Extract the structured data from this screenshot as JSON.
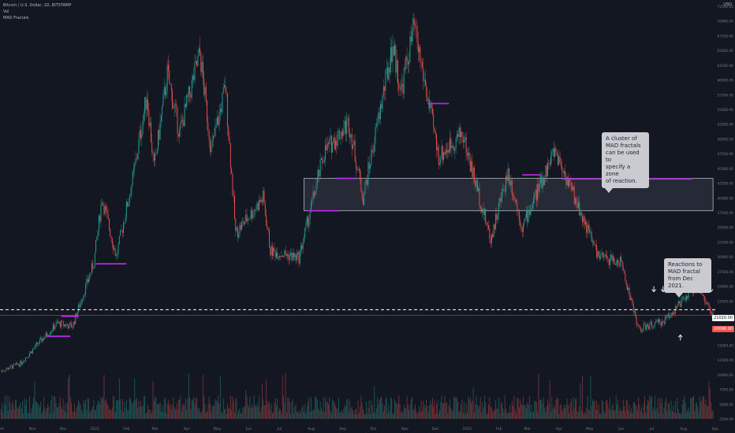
{
  "legend": {
    "symbol": "Bitcoin / U.S. Dollar, 1D, BITSTAMP",
    "vol": "Vol",
    "indicator": "MAD Fractals"
  },
  "currency": "USD",
  "notes": {
    "cluster": "A cluster of\nMAD fractals\ncan be used to\nspecify a zone\nof reaction.",
    "reactions": "Reactions to\nMAD fractal\nfrom Dec 2021."
  },
  "price_tags": {
    "current": "21020.00",
    "last": "20096.00"
  },
  "colors": {
    "background": "#131722",
    "up": "#26a69a",
    "down": "#ef5350",
    "fractal": "#b02ce0",
    "zone_fill": "#2a2e39",
    "zone_border": "#c9cbd0",
    "axis_text": "#787b86",
    "dashed_line": "#ffffff"
  },
  "chart_data": {
    "type": "candlestick",
    "title": "Bitcoin / U.S. Dollar, 1D, BITSTAMP",
    "x_ticks": [
      "Oct",
      "Nov",
      "Dec",
      "2021",
      "Feb",
      "Mar",
      "Apr",
      "May",
      "Jun",
      "Jul",
      "Aug",
      "Sep",
      "Oct",
      "Nov",
      "Dec",
      "2022",
      "Feb",
      "Mar",
      "Apr",
      "May",
      "Jun",
      "Jul",
      "Aug",
      "Sep"
    ],
    "y_ticks": [
      "72500.00",
      "70000.00",
      "67500.00",
      "65000.00",
      "62500.00",
      "60000.00",
      "57500.00",
      "55000.00",
      "52500.00",
      "50000.00",
      "47500.00",
      "45000.00",
      "42500.00",
      "40000.00",
      "37500.00",
      "35000.00",
      "32500.00",
      "30000.00",
      "27500.00",
      "25000.00",
      "22500.00",
      "20000.00",
      "17500.00",
      "15000.00",
      "12500.00",
      "10000.00",
      "7500.00",
      "5000.00",
      "2500.00"
    ],
    "ylim": [
      2500,
      72500
    ],
    "price_path": [
      [
        "2020-10-01",
        10600
      ],
      [
        "2020-10-20",
        11900
      ],
      [
        "2020-11-05",
        15000
      ],
      [
        "2020-11-25",
        18700
      ],
      [
        "2020-12-10",
        18200
      ],
      [
        "2020-12-31",
        29000
      ],
      [
        "2021-01-08",
        40000
      ],
      [
        "2021-01-22",
        30000
      ],
      [
        "2021-02-08",
        44000
      ],
      [
        "2021-02-21",
        57500
      ],
      [
        "2021-02-28",
        45000
      ],
      [
        "2021-03-13",
        61000
      ],
      [
        "2021-03-25",
        51000
      ],
      [
        "2021-04-14",
        64500
      ],
      [
        "2021-04-25",
        48000
      ],
      [
        "2021-05-09",
        58800
      ],
      [
        "2021-05-19",
        34000
      ],
      [
        "2021-06-15",
        40000
      ],
      [
        "2021-06-22",
        31000
      ],
      [
        "2021-07-20",
        29800
      ],
      [
        "2021-08-14",
        47800
      ],
      [
        "2021-09-07",
        52800
      ],
      [
        "2021-09-21",
        40000
      ],
      [
        "2021-10-20",
        66000
      ],
      [
        "2021-10-28",
        58000
      ],
      [
        "2021-11-10",
        69000
      ],
      [
        "2021-12-04",
        47000
      ],
      [
        "2021-12-27",
        51000
      ],
      [
        "2022-01-24",
        33000
      ],
      [
        "2022-02-10",
        44500
      ],
      [
        "2022-02-24",
        35000
      ],
      [
        "2022-03-28",
        48200
      ],
      [
        "2022-05-10",
        30000
      ],
      [
        "2022-06-01",
        29000
      ],
      [
        "2022-06-18",
        17700
      ],
      [
        "2022-07-12",
        19000
      ],
      [
        "2022-08-14",
        25000
      ],
      [
        "2022-08-30",
        20100
      ]
    ],
    "fractal_levels": [
      {
        "start": "2020-11-15",
        "end": "2020-12-08",
        "value": 16500
      },
      {
        "start": "2020-11-29",
        "end": "2020-12-16",
        "value": 19900
      },
      {
        "start": "2021-01-02",
        "end": "2021-02-01",
        "value": 28800
      },
      {
        "start": "2021-07-28",
        "end": "2021-08-28",
        "value": 37800
      },
      {
        "start": "2021-08-26",
        "end": "2021-09-14",
        "value": 43300
      },
      {
        "start": "2021-11-23",
        "end": "2021-12-14",
        "value": 56000
      },
      {
        "start": "2022-02-24",
        "end": "2022-03-14",
        "value": 43900
      },
      {
        "start": "2022-04-04",
        "end": "2022-08-10",
        "value": 43200
      },
      {
        "start": "2022-08-10",
        "end": "2022-08-21",
        "value": 25200
      }
    ],
    "reaction_zone": {
      "start": "2021-07-25",
      "end": "2022-08-30",
      "low": 37800,
      "high": 43300
    },
    "horizontal_line": 21020,
    "annotations": [
      "A cluster of\nMAD fractals\ncan be used to\nspecify a zone\nof reaction.",
      "Reactions to\nMAD fractal\nfrom Dec 2021."
    ]
  }
}
